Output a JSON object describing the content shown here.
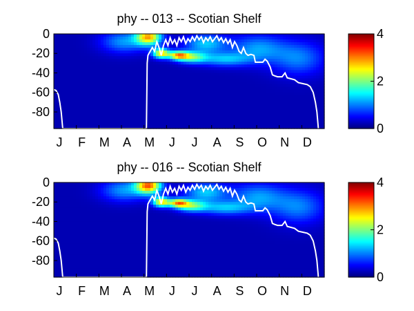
{
  "chart_data": [
    {
      "type": "heatmap",
      "title": "phy -- 013 -- Scotian Shelf",
      "xlabel": "",
      "ylabel": "",
      "x_tick_labels": [
        "J",
        "F",
        "M",
        "A",
        "M",
        "J",
        "J",
        "A",
        "S",
        "O",
        "N",
        "D"
      ],
      "xlim": [
        0,
        365
      ],
      "ylim": [
        -97,
        0
      ],
      "y_ticks": [
        0,
        -20,
        -40,
        -60,
        -80
      ],
      "colorbar": {
        "min": 0,
        "max": 4,
        "ticks": [
          0,
          2,
          4
        ],
        "colormap": "jet"
      },
      "background_value": 0.2,
      "blobs": [
        {
          "day": 128,
          "depth": -3,
          "value": 2.5,
          "day_spread": 12,
          "depth_spread": 6
        },
        {
          "day": 145,
          "depth": -20,
          "value": 2.4,
          "day_spread": 8,
          "depth_spread": 3.5
        },
        {
          "day": 168,
          "depth": -22,
          "value": 2.2,
          "day_spread": 9,
          "depth_spread": 3
        },
        {
          "day": 185,
          "depth": -24,
          "value": 1.6,
          "day_spread": 14,
          "depth_spread": 4
        },
        {
          "day": 230,
          "depth": -26,
          "value": 1.0,
          "day_spread": 25,
          "depth_spread": 5
        },
        {
          "day": 95,
          "depth": -8,
          "value": 0.9,
          "day_spread": 22,
          "depth_spread": 8
        },
        {
          "day": 205,
          "depth": -10,
          "value": 1.1,
          "day_spread": 20,
          "depth_spread": 7
        },
        {
          "day": 275,
          "depth": -15,
          "value": 0.9,
          "day_spread": 25,
          "depth_spread": 10
        },
        {
          "day": 330,
          "depth": -25,
          "value": 0.8,
          "day_spread": 25,
          "depth_spread": 12
        }
      ],
      "mixed_layer_depth": [
        [
          0,
          -57
        ],
        [
          3,
          -58
        ],
        [
          6,
          -62
        ],
        [
          8,
          -70
        ],
        [
          10,
          -80
        ],
        [
          12,
          -97
        ],
        [
          125,
          -97
        ],
        [
          126,
          -30
        ],
        [
          127,
          -22
        ],
        [
          130,
          -18
        ],
        [
          133,
          -14
        ],
        [
          136,
          -18
        ],
        [
          139,
          -8
        ],
        [
          142,
          -14
        ],
        [
          145,
          -22
        ],
        [
          148,
          -12
        ],
        [
          151,
          -6
        ],
        [
          154,
          -12
        ],
        [
          157,
          -4
        ],
        [
          160,
          -10
        ],
        [
          163,
          -6
        ],
        [
          166,
          -12
        ],
        [
          169,
          -4
        ],
        [
          172,
          -8
        ],
        [
          175,
          -3
        ],
        [
          178,
          -10
        ],
        [
          181,
          -5
        ],
        [
          184,
          -8
        ],
        [
          187,
          -3
        ],
        [
          190,
          -7
        ],
        [
          193,
          -2
        ],
        [
          196,
          -6
        ],
        [
          199,
          -3
        ],
        [
          202,
          -9
        ],
        [
          205,
          -4
        ],
        [
          208,
          -7
        ],
        [
          211,
          -3
        ],
        [
          214,
          -8
        ],
        [
          217,
          -5
        ],
        [
          220,
          -2
        ],
        [
          223,
          -7
        ],
        [
          226,
          -4
        ],
        [
          229,
          -9
        ],
        [
          232,
          -5
        ],
        [
          235,
          -10
        ],
        [
          238,
          -6
        ],
        [
          241,
          -14
        ],
        [
          244,
          -8
        ],
        [
          247,
          -12
        ],
        [
          250,
          -18
        ],
        [
          253,
          -20
        ],
        [
          256,
          -14
        ],
        [
          259,
          -20
        ],
        [
          262,
          -22
        ],
        [
          266,
          -21
        ],
        [
          270,
          -22
        ],
        [
          272,
          -29
        ],
        [
          282,
          -29
        ],
        [
          285,
          -26
        ],
        [
          288,
          -28
        ],
        [
          292,
          -34
        ],
        [
          295,
          -42
        ],
        [
          298,
          -43
        ],
        [
          302,
          -44
        ],
        [
          308,
          -44
        ],
        [
          312,
          -40
        ],
        [
          315,
          -45
        ],
        [
          320,
          -46
        ],
        [
          325,
          -47
        ],
        [
          330,
          -50
        ],
        [
          336,
          -51
        ],
        [
          342,
          -52
        ],
        [
          346,
          -54
        ],
        [
          350,
          -60
        ],
        [
          353,
          -70
        ],
        [
          355,
          -80
        ],
        [
          357,
          -97
        ]
      ]
    },
    {
      "type": "heatmap",
      "title": "phy -- 016 -- Scotian Shelf",
      "xlabel": "",
      "ylabel": "",
      "x_tick_labels": [
        "J",
        "F",
        "M",
        "A",
        "M",
        "J",
        "J",
        "A",
        "S",
        "O",
        "N",
        "D"
      ],
      "xlim": [
        0,
        365
      ],
      "ylim": [
        -97,
        0
      ],
      "y_ticks": [
        0,
        -20,
        -40,
        -60,
        -80
      ],
      "colorbar": {
        "min": 0,
        "max": 4,
        "ticks": [
          0,
          2,
          4
        ],
        "colormap": "jet"
      },
      "background_value": 0.2,
      "blobs": [
        {
          "day": 128,
          "depth": -3,
          "value": 2.8,
          "day_spread": 12,
          "depth_spread": 6
        },
        {
          "day": 145,
          "depth": -20,
          "value": 2.4,
          "day_spread": 8,
          "depth_spread": 3.5
        },
        {
          "day": 168,
          "depth": -21,
          "value": 2.3,
          "day_spread": 9,
          "depth_spread": 3
        },
        {
          "day": 185,
          "depth": -24,
          "value": 1.6,
          "day_spread": 14,
          "depth_spread": 4
        },
        {
          "day": 230,
          "depth": -26,
          "value": 1.0,
          "day_spread": 25,
          "depth_spread": 5
        },
        {
          "day": 95,
          "depth": -8,
          "value": 0.9,
          "day_spread": 22,
          "depth_spread": 8
        },
        {
          "day": 205,
          "depth": -10,
          "value": 1.1,
          "day_spread": 20,
          "depth_spread": 7
        },
        {
          "day": 275,
          "depth": -15,
          "value": 0.9,
          "day_spread": 25,
          "depth_spread": 10
        },
        {
          "day": 330,
          "depth": -25,
          "value": 0.8,
          "day_spread": 25,
          "depth_spread": 12
        }
      ],
      "mixed_layer_depth": [
        [
          0,
          -57
        ],
        [
          3,
          -58
        ],
        [
          6,
          -62
        ],
        [
          8,
          -70
        ],
        [
          10,
          -80
        ],
        [
          12,
          -97
        ],
        [
          125,
          -97
        ],
        [
          126,
          -30
        ],
        [
          127,
          -22
        ],
        [
          130,
          -18
        ],
        [
          133,
          -14
        ],
        [
          136,
          -18
        ],
        [
          139,
          -8
        ],
        [
          142,
          -14
        ],
        [
          145,
          -22
        ],
        [
          148,
          -12
        ],
        [
          151,
          -6
        ],
        [
          154,
          -12
        ],
        [
          157,
          -4
        ],
        [
          160,
          -10
        ],
        [
          163,
          -6
        ],
        [
          166,
          -12
        ],
        [
          169,
          -4
        ],
        [
          172,
          -8
        ],
        [
          175,
          -3
        ],
        [
          178,
          -10
        ],
        [
          181,
          -5
        ],
        [
          184,
          -8
        ],
        [
          187,
          -3
        ],
        [
          190,
          -7
        ],
        [
          193,
          -2
        ],
        [
          196,
          -6
        ],
        [
          199,
          -3
        ],
        [
          202,
          -9
        ],
        [
          205,
          -4
        ],
        [
          208,
          -7
        ],
        [
          211,
          -3
        ],
        [
          214,
          -8
        ],
        [
          217,
          -5
        ],
        [
          220,
          -2
        ],
        [
          223,
          -7
        ],
        [
          226,
          -4
        ],
        [
          229,
          -9
        ],
        [
          232,
          -5
        ],
        [
          235,
          -10
        ],
        [
          238,
          -6
        ],
        [
          241,
          -14
        ],
        [
          244,
          -8
        ],
        [
          247,
          -12
        ],
        [
          250,
          -18
        ],
        [
          253,
          -20
        ],
        [
          256,
          -14
        ],
        [
          259,
          -20
        ],
        [
          262,
          -22
        ],
        [
          266,
          -21
        ],
        [
          270,
          -22
        ],
        [
          272,
          -29
        ],
        [
          282,
          -29
        ],
        [
          285,
          -26
        ],
        [
          288,
          -28
        ],
        [
          292,
          -34
        ],
        [
          295,
          -42
        ],
        [
          298,
          -43
        ],
        [
          302,
          -44
        ],
        [
          308,
          -44
        ],
        [
          312,
          -40
        ],
        [
          315,
          -45
        ],
        [
          320,
          -46
        ],
        [
          325,
          -47
        ],
        [
          330,
          -50
        ],
        [
          336,
          -51
        ],
        [
          342,
          -52
        ],
        [
          346,
          -54
        ],
        [
          350,
          -60
        ],
        [
          353,
          -70
        ],
        [
          355,
          -80
        ],
        [
          357,
          -97
        ]
      ]
    }
  ]
}
